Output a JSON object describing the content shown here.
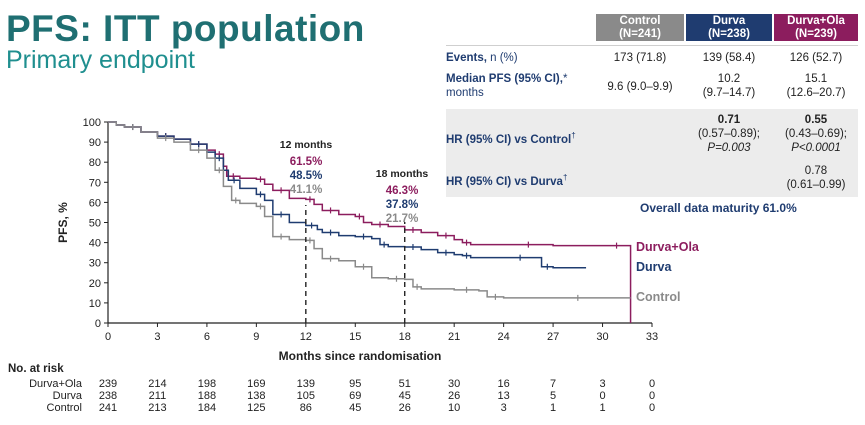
{
  "header": {
    "title": "PFS: ITT population",
    "subtitle": "Primary endpoint"
  },
  "colors": {
    "control": "#8a8a8a",
    "durva": "#1f3c70",
    "durva_ola": "#8c1d5e",
    "title": "#1f6f72",
    "control_header": "#8a8a8a"
  },
  "table": {
    "columns": [
      {
        "name": "Control",
        "n": "(N=241)"
      },
      {
        "name": "Durva",
        "n": "(N=238)"
      },
      {
        "name": "Durva+Ola",
        "n": "(N=239)"
      }
    ],
    "rows": [
      {
        "label_bold": "Events,",
        "label_rest": " n (%)",
        "label_line2": "",
        "values": [
          "173 (71.8)",
          "139 (58.4)",
          "126 (52.7)"
        ]
      },
      {
        "label_bold": "Median PFS (95% CI),",
        "label_rest": "*",
        "label_line2": "months",
        "values_line1": [
          "9.6 (9.0–9.9)",
          "10.2",
          "15.1"
        ],
        "values_line2": [
          "",
          "(9.7–14.7)",
          "(12.6–20.7)"
        ]
      },
      {
        "label_bold": "HR (95% CI) vs Control",
        "label_rest": "†",
        "durva": [
          "0.71",
          "(0.57–0.89);",
          "P=0.003"
        ],
        "durva_ola": [
          "0.55",
          "(0.43–0.69);",
          "P<0.0001"
        ]
      },
      {
        "label_bold": "HR (95% CI) vs Durva",
        "label_rest": "†",
        "durva_ola": [
          "0.78",
          "(0.61–0.99)"
        ]
      }
    ],
    "maturity": "Overall data maturity 61.0%"
  },
  "chart_data": {
    "type": "line",
    "subtype": "kaplan-meier",
    "xlabel": "Months since randomisation",
    "ylabel": "PFS, %",
    "xlim": [
      0,
      33
    ],
    "ylim": [
      0,
      100
    ],
    "xticks": [
      0,
      3,
      6,
      9,
      12,
      15,
      18,
      21,
      24,
      27,
      30,
      33
    ],
    "yticks": [
      0,
      10,
      20,
      30,
      40,
      50,
      60,
      70,
      80,
      90,
      100
    ],
    "landmarks": [
      {
        "month": 12,
        "label": "12 months",
        "values": [
          "61.5%",
          "48.5%",
          "41.1%"
        ]
      },
      {
        "month": 18,
        "label": "18 months",
        "values": [
          "46.3%",
          "37.8%",
          "21.7%"
        ]
      }
    ],
    "series": [
      {
        "name": "Durva+Ola",
        "color": "#8c1d5e",
        "points": [
          [
            0,
            100
          ],
          [
            0.5,
            98.5
          ],
          [
            1,
            97.5
          ],
          [
            2,
            95
          ],
          [
            3,
            93
          ],
          [
            4,
            91.5
          ],
          [
            5,
            89
          ],
          [
            6,
            86
          ],
          [
            6.5,
            84
          ],
          [
            7,
            78
          ],
          [
            7.2,
            73
          ],
          [
            8,
            72
          ],
          [
            9,
            71.5
          ],
          [
            9.5,
            69
          ],
          [
            10,
            66
          ],
          [
            11,
            62
          ],
          [
            12,
            61.5
          ],
          [
            12.5,
            59
          ],
          [
            13,
            56
          ],
          [
            14,
            54
          ],
          [
            15,
            53
          ],
          [
            15.5,
            50
          ],
          [
            16,
            49
          ],
          [
            17,
            48
          ],
          [
            18,
            46.3
          ],
          [
            19,
            45
          ],
          [
            20,
            43.5
          ],
          [
            21,
            41.5
          ],
          [
            21.5,
            40
          ],
          [
            22,
            39
          ],
          [
            24,
            39
          ],
          [
            27,
            38.5
          ],
          [
            30,
            38.5
          ],
          [
            31.7,
            38.5
          ]
        ],
        "end": [
          31.7,
          0
        ]
      },
      {
        "name": "Durva",
        "color": "#1f3c70",
        "points": [
          [
            0,
            100
          ],
          [
            0.5,
            98.5
          ],
          [
            1,
            97.5
          ],
          [
            2,
            95
          ],
          [
            3,
            93
          ],
          [
            4,
            91.5
          ],
          [
            5,
            89
          ],
          [
            6,
            85
          ],
          [
            6.5,
            82
          ],
          [
            7,
            76
          ],
          [
            7.3,
            71
          ],
          [
            8,
            67
          ],
          [
            9,
            64
          ],
          [
            9.5,
            61
          ],
          [
            10,
            54
          ],
          [
            11,
            50
          ],
          [
            12,
            48.5
          ],
          [
            12.7,
            46.5
          ],
          [
            13,
            45
          ],
          [
            14,
            43.5
          ],
          [
            15,
            43
          ],
          [
            16,
            42
          ],
          [
            16.5,
            39
          ],
          [
            17,
            38
          ],
          [
            18,
            37.8
          ],
          [
            19,
            36.5
          ],
          [
            20,
            35
          ],
          [
            21,
            34
          ],
          [
            21.5,
            33.5
          ],
          [
            22,
            32.5
          ],
          [
            24,
            32.5
          ],
          [
            26,
            32.5
          ],
          [
            26.3,
            28
          ],
          [
            27,
            27.5
          ],
          [
            29,
            27.5
          ]
        ]
      },
      {
        "name": "Control",
        "color": "#8a8a8a",
        "points": [
          [
            0,
            100
          ],
          [
            0.5,
            98.5
          ],
          [
            1,
            97.5
          ],
          [
            2,
            95
          ],
          [
            3,
            92
          ],
          [
            4,
            90
          ],
          [
            5,
            86
          ],
          [
            6,
            82
          ],
          [
            6.5,
            76
          ],
          [
            7,
            68
          ],
          [
            7.5,
            61
          ],
          [
            8,
            59.5
          ],
          [
            9,
            58
          ],
          [
            9.5,
            53
          ],
          [
            10,
            43
          ],
          [
            11,
            41.5
          ],
          [
            12,
            41.1
          ],
          [
            12.5,
            37
          ],
          [
            13,
            32
          ],
          [
            14,
            31
          ],
          [
            15,
            28
          ],
          [
            16,
            22.5
          ],
          [
            17,
            22
          ],
          [
            18,
            21.7
          ],
          [
            18.5,
            18
          ],
          [
            19,
            17
          ],
          [
            21,
            16.5
          ],
          [
            22.5,
            16
          ],
          [
            23,
            13
          ],
          [
            24,
            12.5
          ],
          [
            27,
            12.5
          ],
          [
            30,
            12.5
          ],
          [
            31.7,
            12.5
          ]
        ]
      }
    ],
    "series_labels": [
      "Durva+Ola",
      "Durva",
      "Control"
    ]
  },
  "risk": {
    "title": "No. at risk",
    "times": [
      0,
      3,
      6,
      9,
      12,
      15,
      18,
      21,
      24,
      27,
      30,
      33
    ],
    "rows": [
      {
        "label": "Durva+Ola",
        "values": [
          "239",
          "214",
          "198",
          "169",
          "139",
          "95",
          "51",
          "30",
          "16",
          "7",
          "3",
          "0"
        ]
      },
      {
        "label": "Durva",
        "values": [
          "238",
          "211",
          "188",
          "138",
          "105",
          "69",
          "45",
          "26",
          "13",
          "5",
          "0",
          "0"
        ]
      },
      {
        "label": "Control",
        "values": [
          "241",
          "213",
          "184",
          "125",
          "86",
          "45",
          "26",
          "10",
          "3",
          "1",
          "1",
          "0"
        ]
      }
    ]
  }
}
